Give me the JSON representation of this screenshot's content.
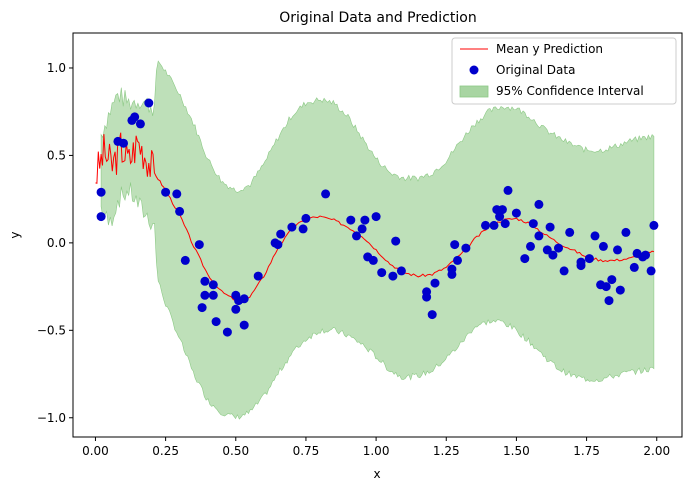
{
  "chart_data": {
    "type": "scatter",
    "title": "Original Data and Prediction",
    "xlabel": "x",
    "ylabel": "y",
    "xlim": [
      -0.08,
      2.09
    ],
    "ylim": [
      -1.11,
      1.2
    ],
    "xticks": [
      0.0,
      0.25,
      0.5,
      0.75,
      1.0,
      1.25,
      1.5,
      1.75,
      2.0
    ],
    "xtick_labels": [
      "0.00",
      "0.25",
      "0.50",
      "0.75",
      "1.00",
      "1.25",
      "1.50",
      "1.75",
      "2.00"
    ],
    "yticks": [
      -1.0,
      -0.5,
      0.0,
      0.5,
      1.0
    ],
    "ytick_labels": [
      "−1.0",
      "−0.5",
      "0.0",
      "0.5",
      "1.0"
    ],
    "grid": false,
    "legend_position": "top-right",
    "legend": [
      {
        "label": "Mean y Prediction",
        "kind": "line",
        "color": "#ff0000"
      },
      {
        "label": "Original Data",
        "kind": "marker",
        "color": "#0000cc"
      },
      {
        "label": "95% Confidence Interval",
        "kind": "band",
        "color": "#a8d5a2"
      }
    ],
    "series": [
      {
        "name": "Mean y Prediction",
        "kind": "line",
        "color": "#ff0000",
        "x": [
          0.0,
          0.03,
          0.06,
          0.09,
          0.12,
          0.15,
          0.18,
          0.21,
          0.25,
          0.3,
          0.35,
          0.4,
          0.45,
          0.5,
          0.55,
          0.6,
          0.65,
          0.7,
          0.75,
          0.8,
          0.85,
          0.9,
          0.95,
          1.0,
          1.05,
          1.1,
          1.15,
          1.2,
          1.25,
          1.3,
          1.35,
          1.4,
          1.45,
          1.5,
          1.55,
          1.6,
          1.65,
          1.7,
          1.75,
          1.8,
          1.85,
          1.9,
          1.95,
          1.99
        ],
        "y": [
          0.38,
          0.52,
          0.44,
          0.55,
          0.47,
          0.58,
          0.5,
          0.4,
          0.3,
          0.16,
          -0.02,
          -0.18,
          -0.28,
          -0.33,
          -0.31,
          -0.19,
          -0.03,
          0.08,
          0.14,
          0.15,
          0.13,
          0.09,
          0.04,
          -0.04,
          -0.12,
          -0.17,
          -0.19,
          -0.18,
          -0.14,
          -0.07,
          0.02,
          0.09,
          0.13,
          0.14,
          0.11,
          0.05,
          0.0,
          -0.04,
          -0.08,
          -0.1,
          -0.1,
          -0.09,
          -0.07,
          -0.05
        ]
      },
      {
        "name": "Original Data",
        "kind": "scatter",
        "color": "#0000cc",
        "x": [
          0.02,
          0.02,
          0.08,
          0.1,
          0.13,
          0.14,
          0.16,
          0.19,
          0.25,
          0.29,
          0.3,
          0.32,
          0.37,
          0.38,
          0.39,
          0.39,
          0.42,
          0.42,
          0.43,
          0.47,
          0.5,
          0.5,
          0.51,
          0.53,
          0.53,
          0.58,
          0.64,
          0.65,
          0.66,
          0.7,
          0.74,
          0.75,
          0.82,
          0.91,
          0.93,
          0.95,
          0.96,
          0.97,
          0.99,
          1.0,
          1.02,
          1.06,
          1.07,
          1.09,
          1.18,
          1.18,
          1.2,
          1.21,
          1.27,
          1.27,
          1.28,
          1.29,
          1.32,
          1.39,
          1.42,
          1.43,
          1.44,
          1.45,
          1.46,
          1.47,
          1.5,
          1.53,
          1.55,
          1.56,
          1.58,
          1.58,
          1.61,
          1.62,
          1.63,
          1.65,
          1.67,
          1.69,
          1.73,
          1.73,
          1.76,
          1.78,
          1.8,
          1.81,
          1.82,
          1.83,
          1.84,
          1.86,
          1.87,
          1.89,
          1.92,
          1.93,
          1.95,
          1.96,
          1.98,
          1.99
        ],
        "y": [
          0.29,
          0.15,
          0.58,
          0.57,
          0.7,
          0.72,
          0.68,
          0.8,
          0.29,
          0.28,
          0.18,
          -0.1,
          -0.01,
          -0.37,
          -0.22,
          -0.3,
          -0.24,
          -0.3,
          -0.45,
          -0.51,
          -0.38,
          -0.3,
          -0.33,
          -0.47,
          -0.32,
          -0.19,
          0.0,
          -0.01,
          0.05,
          0.09,
          0.08,
          0.14,
          0.28,
          0.13,
          0.04,
          0.08,
          0.13,
          -0.08,
          -0.1,
          0.15,
          -0.17,
          -0.19,
          0.01,
          -0.16,
          -0.28,
          -0.31,
          -0.41,
          -0.23,
          -0.15,
          -0.18,
          -0.01,
          -0.1,
          -0.03,
          0.1,
          0.1,
          0.19,
          0.15,
          0.19,
          0.11,
          0.3,
          0.17,
          -0.09,
          -0.02,
          0.11,
          0.04,
          0.22,
          -0.04,
          0.09,
          -0.07,
          -0.03,
          -0.16,
          0.06,
          -0.13,
          -0.11,
          -0.09,
          0.04,
          -0.24,
          -0.02,
          -0.25,
          -0.33,
          -0.21,
          -0.04,
          -0.27,
          0.06,
          -0.14,
          -0.06,
          -0.08,
          -0.07,
          -0.16,
          0.1
        ]
      },
      {
        "name": "95% Confidence Interval",
        "kind": "band",
        "color": "#a8d5a2",
        "x": [
          0.02,
          0.05,
          0.08,
          0.12,
          0.16,
          0.2,
          0.21,
          0.22,
          0.25,
          0.3,
          0.35,
          0.4,
          0.45,
          0.5,
          0.55,
          0.6,
          0.65,
          0.7,
          0.75,
          0.8,
          0.85,
          0.9,
          0.95,
          1.0,
          1.05,
          1.1,
          1.15,
          1.2,
          1.25,
          1.3,
          1.35,
          1.4,
          1.45,
          1.5,
          1.55,
          1.6,
          1.65,
          1.7,
          1.75,
          1.8,
          1.85,
          1.9,
          1.95,
          1.99
        ],
        "upper": [
          0.62,
          0.75,
          0.85,
          0.8,
          0.82,
          0.78,
          0.78,
          1.05,
          0.98,
          0.85,
          0.68,
          0.48,
          0.35,
          0.3,
          0.33,
          0.45,
          0.6,
          0.73,
          0.8,
          0.82,
          0.8,
          0.72,
          0.6,
          0.48,
          0.4,
          0.37,
          0.37,
          0.4,
          0.47,
          0.58,
          0.68,
          0.75,
          0.78,
          0.77,
          0.72,
          0.65,
          0.6,
          0.56,
          0.53,
          0.53,
          0.55,
          0.58,
          0.6,
          0.61
        ],
        "lower": [
          0.2,
          0.1,
          0.25,
          0.3,
          0.2,
          0.12,
          0.12,
          -0.2,
          -0.35,
          -0.55,
          -0.75,
          -0.9,
          -0.97,
          -1.0,
          -0.97,
          -0.88,
          -0.75,
          -0.63,
          -0.55,
          -0.5,
          -0.5,
          -0.53,
          -0.58,
          -0.65,
          -0.73,
          -0.77,
          -0.76,
          -0.73,
          -0.66,
          -0.58,
          -0.48,
          -0.45,
          -0.45,
          -0.5,
          -0.57,
          -0.65,
          -0.72,
          -0.76,
          -0.78,
          -0.78,
          -0.76,
          -0.74,
          -0.73,
          -0.72
        ]
      }
    ]
  }
}
